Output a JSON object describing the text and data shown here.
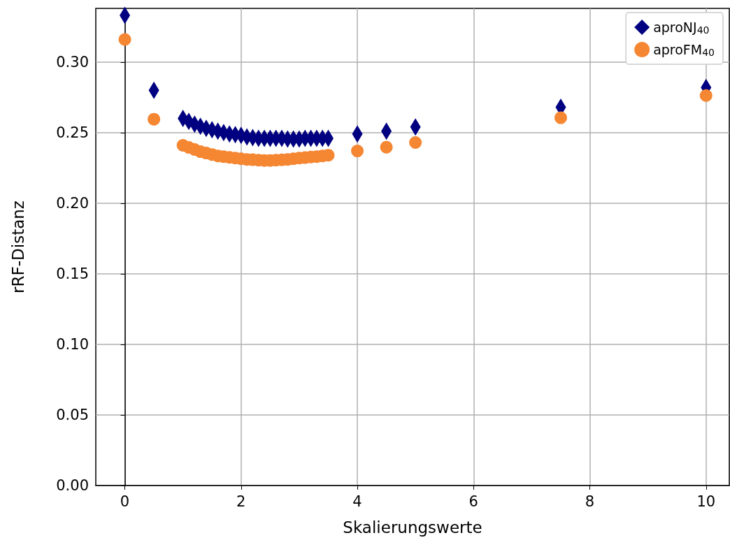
{
  "chart_data": {
    "type": "scatter",
    "xlabel": "Skalierungswerte",
    "ylabel": "rRF-Distanz",
    "xlim": [
      -0.5,
      10.4
    ],
    "ylim": [
      0,
      0.338
    ],
    "xticks": [
      0,
      2,
      4,
      6,
      8,
      10
    ],
    "yticks": [
      {
        "value": 0,
        "label": "0.00"
      },
      {
        "value": 0.05,
        "label": "0.05"
      },
      {
        "value": 0.1,
        "label": "0.10"
      },
      {
        "value": 0.15,
        "label": "0.15"
      },
      {
        "value": 0.2,
        "label": "0.20"
      },
      {
        "value": 0.25,
        "label": "0.25"
      },
      {
        "value": 0.3,
        "label": "0.30"
      }
    ],
    "grid": true,
    "legend": "top right",
    "series": [
      {
        "name": "aproNJ$_{40}$",
        "color": "#000080",
        "marker": "diamond",
        "x": [
          0,
          0.5,
          1.0,
          1.1,
          1.2,
          1.3,
          1.4,
          1.5,
          1.6,
          1.7,
          1.8,
          1.9,
          2.0,
          2.1,
          2.2,
          2.3,
          2.4,
          2.5,
          2.6,
          2.7,
          2.8,
          2.9,
          3.0,
          3.1,
          3.2,
          3.3,
          3.4,
          3.5,
          4,
          4.5,
          5,
          7.5,
          10
        ],
        "values": [
          0.333,
          0.28,
          0.26,
          0.258,
          0.256,
          0.2545,
          0.253,
          0.252,
          0.251,
          0.25,
          0.249,
          0.2485,
          0.248,
          0.247,
          0.2465,
          0.246,
          0.246,
          0.246,
          0.246,
          0.246,
          0.2455,
          0.2455,
          0.2455,
          0.246,
          0.246,
          0.246,
          0.246,
          0.246,
          0.249,
          0.251,
          0.254,
          0.268,
          0.282
        ]
      },
      {
        "name": "aproFM$_{40}$",
        "color": "#f58632",
        "marker": "circle",
        "x": [
          0,
          0.5,
          1.0,
          1.1,
          1.2,
          1.3,
          1.4,
          1.5,
          1.6,
          1.7,
          1.8,
          1.9,
          2.0,
          2.1,
          2.2,
          2.3,
          2.4,
          2.5,
          2.6,
          2.7,
          2.8,
          2.9,
          3.0,
          3.1,
          3.2,
          3.3,
          3.4,
          3.5,
          4,
          4.5,
          5,
          7.5,
          10
        ],
        "values": [
          0.316,
          0.2595,
          0.241,
          0.2395,
          0.238,
          0.2365,
          0.2355,
          0.2345,
          0.2335,
          0.233,
          0.2325,
          0.232,
          0.2315,
          0.231,
          0.2308,
          0.2305,
          0.2303,
          0.2303,
          0.2305,
          0.2307,
          0.231,
          0.2315,
          0.232,
          0.2323,
          0.2327,
          0.233,
          0.2335,
          0.234,
          0.237,
          0.2397,
          0.243,
          0.2605,
          0.2763
        ]
      }
    ]
  }
}
